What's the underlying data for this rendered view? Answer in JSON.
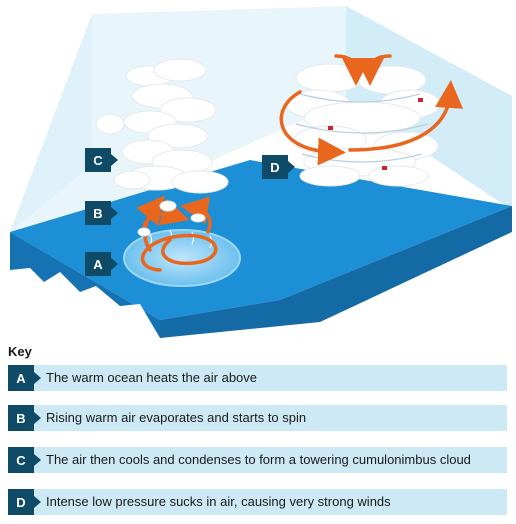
{
  "labels": {
    "a": "A",
    "b": "B",
    "c": "C",
    "d": "D"
  },
  "key": {
    "title": "Key",
    "items": [
      {
        "letter": "A",
        "text": "The warm ocean heats the air above"
      },
      {
        "letter": "B",
        "text": "Rising warm air evaporates and starts to spin"
      },
      {
        "letter": "C",
        "text": "The air then cools and condenses to form a towering cumulonimbus cloud"
      },
      {
        "letter": "D",
        "text": "Intense low pressure sucks in air, causing very strong winds"
      }
    ]
  },
  "colors": {
    "ocean_top": "#1d8fd6",
    "ocean_side": "#1573b3",
    "sky_wall": "#d9f0fa",
    "arrow": "#e8661e",
    "label_bg": "#0f4a66",
    "key_bg": "#cde9f6",
    "cloud": "#ffffff"
  }
}
